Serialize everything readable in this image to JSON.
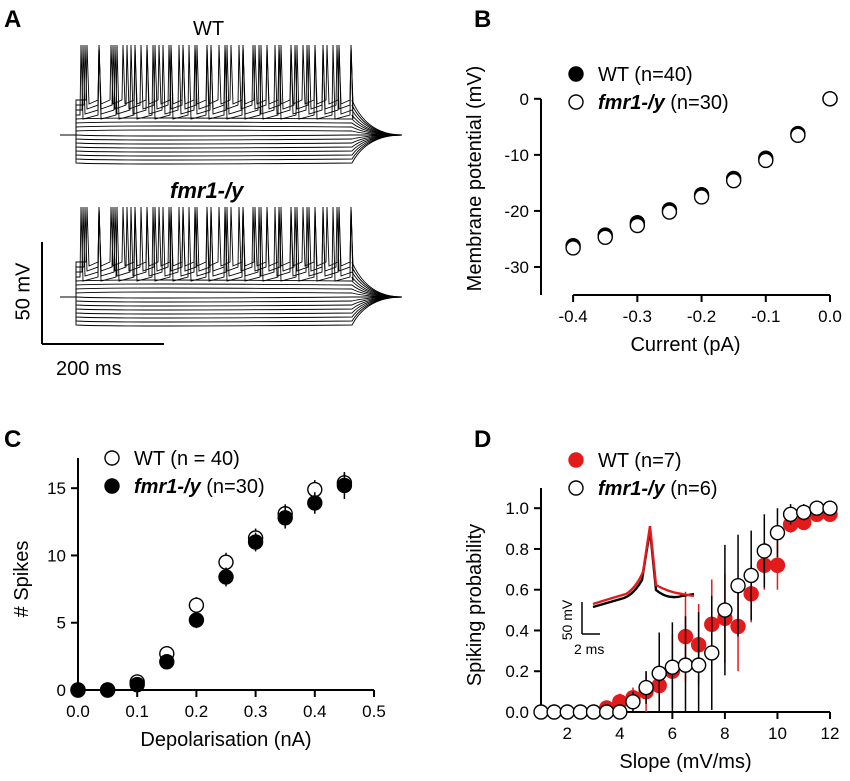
{
  "panel_A": {
    "label": "A",
    "wt_title": "WT",
    "ko_title": "fmr1-/y",
    "scale_y": "50 mV",
    "scale_x": "200 ms"
  },
  "chart_data": [
    {
      "panel": "B",
      "type": "scatter",
      "title": "",
      "xlabel": "Current (pA)",
      "ylabel": "Membrane potential (mV)",
      "xlim": [
        -0.45,
        0.0
      ],
      "ylim": [
        -35,
        3
      ],
      "xticks": [
        -0.4,
        -0.3,
        -0.2,
        -0.1,
        0.0
      ],
      "xtick_labels": [
        "-0.4",
        "-0.3",
        "-0.2",
        "-0.1",
        "0.0"
      ],
      "yticks": [
        0,
        -10,
        -20,
        -30
      ],
      "ytick_labels": [
        "0",
        "-10",
        "-20",
        "-30"
      ],
      "legend": [
        {
          "name": "WT",
          "n": "(n=40)",
          "fill": "#000000",
          "italic": false
        },
        {
          "name": "fmr1-/y",
          "n": "(n=30)",
          "fill": "#ffffff",
          "italic": true
        }
      ],
      "series": [
        {
          "name": "WT",
          "fill": "#000000",
          "x": [
            -0.4,
            -0.35,
            -0.3,
            -0.25,
            -0.2,
            -0.15,
            -0.1,
            -0.05,
            0.0
          ],
          "y": [
            -26.2,
            -24.3,
            -22.1,
            -19.8,
            -17.1,
            -14.2,
            -10.6,
            -6.2,
            0
          ]
        },
        {
          "name": "fmr1-/y",
          "fill": "#ffffff",
          "x": [
            -0.4,
            -0.35,
            -0.3,
            -0.25,
            -0.2,
            -0.15,
            -0.1,
            -0.05,
            0.0
          ],
          "y": [
            -26.6,
            -24.7,
            -22.6,
            -20.2,
            -17.5,
            -14.6,
            -11.0,
            -6.5,
            0
          ]
        }
      ]
    },
    {
      "panel": "C",
      "type": "scatter",
      "title": "",
      "xlabel": "Depolarisation (nA)",
      "ylabel": "# Spikes",
      "xlim": [
        0.0,
        0.5
      ],
      "ylim": [
        0,
        16.5
      ],
      "xticks": [
        0.0,
        0.1,
        0.2,
        0.3,
        0.4,
        0.5
      ],
      "xtick_labels": [
        "0.0",
        "0.1",
        "0.2",
        "0.3",
        "0.4",
        "0.5"
      ],
      "yticks": [
        0,
        5,
        10,
        15
      ],
      "ytick_labels": [
        "0",
        "5",
        "10",
        "15"
      ],
      "legend": [
        {
          "name": "WT",
          "n": "(n = 40)",
          "fill": "#ffffff",
          "italic": false
        },
        {
          "name": "fmr1-/y",
          "n": "(n=30)",
          "fill": "#000000",
          "italic": true
        }
      ],
      "series": [
        {
          "name": "WT",
          "fill": "#ffffff",
          "x": [
            0.0,
            0.05,
            0.1,
            0.15,
            0.2,
            0.25,
            0.3,
            0.35,
            0.4,
            0.45
          ],
          "y": [
            0.0,
            0.0,
            0.6,
            2.7,
            6.3,
            9.5,
            11.3,
            13.1,
            14.9,
            15.4
          ],
          "err": [
            0,
            0,
            0.3,
            0.5,
            0.6,
            0.7,
            0.7,
            0.7,
            0.7,
            0.7
          ]
        },
        {
          "name": "fmr1-/y",
          "fill": "#000000",
          "x": [
            0.0,
            0.05,
            0.1,
            0.15,
            0.2,
            0.25,
            0.3,
            0.35,
            0.4,
            0.45
          ],
          "y": [
            0.0,
            0.0,
            0.4,
            2.1,
            5.2,
            8.4,
            11.0,
            12.8,
            13.9,
            15.2
          ],
          "err": [
            0,
            0,
            0.3,
            0.5,
            0.6,
            0.7,
            0.7,
            0.8,
            0.8,
            1.0
          ]
        }
      ]
    },
    {
      "panel": "D",
      "type": "scatter",
      "title": "",
      "xlabel": "Slope (mV/ms)",
      "ylabel": "Spiking probability",
      "xlim": [
        1,
        12
      ],
      "ylim": [
        0,
        1.05
      ],
      "xticks": [
        2,
        4,
        6,
        8,
        10,
        12
      ],
      "xtick_labels": [
        "2",
        "4",
        "6",
        "8",
        "10",
        "12"
      ],
      "yticks": [
        0.0,
        0.2,
        0.4,
        0.6,
        0.8,
        1.0
      ],
      "ytick_labels": [
        "0.0",
        "0.2",
        "0.4",
        "0.6",
        "0.8",
        "1.0"
      ],
      "legend": [
        {
          "name": "WT",
          "n": "(n=7)",
          "fill": "#e31a1c",
          "italic": false
        },
        {
          "name": "fmr1-/y",
          "n": "(n=6)",
          "fill": "#ffffff",
          "italic": true
        }
      ],
      "inset": {
        "scale_y": "50 mV",
        "scale_x": "2 ms"
      },
      "series": [
        {
          "name": "WT",
          "fill": "#e31a1c",
          "x": [
            3.5,
            4.0,
            4.5,
            5.0,
            5.5,
            6.0,
            6.5,
            7.0,
            7.5,
            8.0,
            8.5,
            9.0,
            9.5,
            10.0,
            10.5,
            11.0,
            11.5,
            12.0
          ],
          "y": [
            0.02,
            0.05,
            0.07,
            0.1,
            0.13,
            0.2,
            0.37,
            0.33,
            0.43,
            0.46,
            0.42,
            0.58,
            0.72,
            0.72,
            0.92,
            0.93,
            0.97,
            0.97
          ],
          "err": [
            0.02,
            0.04,
            0.05,
            0.1,
            0.14,
            0.18,
            0.22,
            0.2,
            0.22,
            0.22,
            0.22,
            0.14,
            0.12,
            0.12,
            0.04,
            0.03,
            0.02,
            0.02
          ]
        },
        {
          "name": "fmr1-/y",
          "fill": "#ffffff",
          "x": [
            1.0,
            1.5,
            2.0,
            2.5,
            3.0,
            3.5,
            4.0,
            4.5,
            5.0,
            5.5,
            6.0,
            6.5,
            7.0,
            7.5,
            8.0,
            8.5,
            9.0,
            9.5,
            10.0,
            10.5,
            11.0,
            11.5,
            12.0
          ],
          "y": [
            0,
            0,
            0,
            0,
            0,
            0,
            0,
            0.05,
            0.12,
            0.19,
            0.22,
            0.23,
            0.23,
            0.29,
            0.5,
            0.62,
            0.67,
            0.79,
            0.88,
            0.97,
            0.98,
            1.0,
            1.0
          ],
          "err": [
            0,
            0,
            0,
            0,
            0,
            0,
            0,
            0.05,
            0.08,
            0.2,
            0.22,
            0.24,
            0.26,
            0.28,
            0.32,
            0.25,
            0.22,
            0.18,
            0.12,
            0.05,
            0.04,
            0.02,
            0.02
          ]
        }
      ]
    }
  ]
}
